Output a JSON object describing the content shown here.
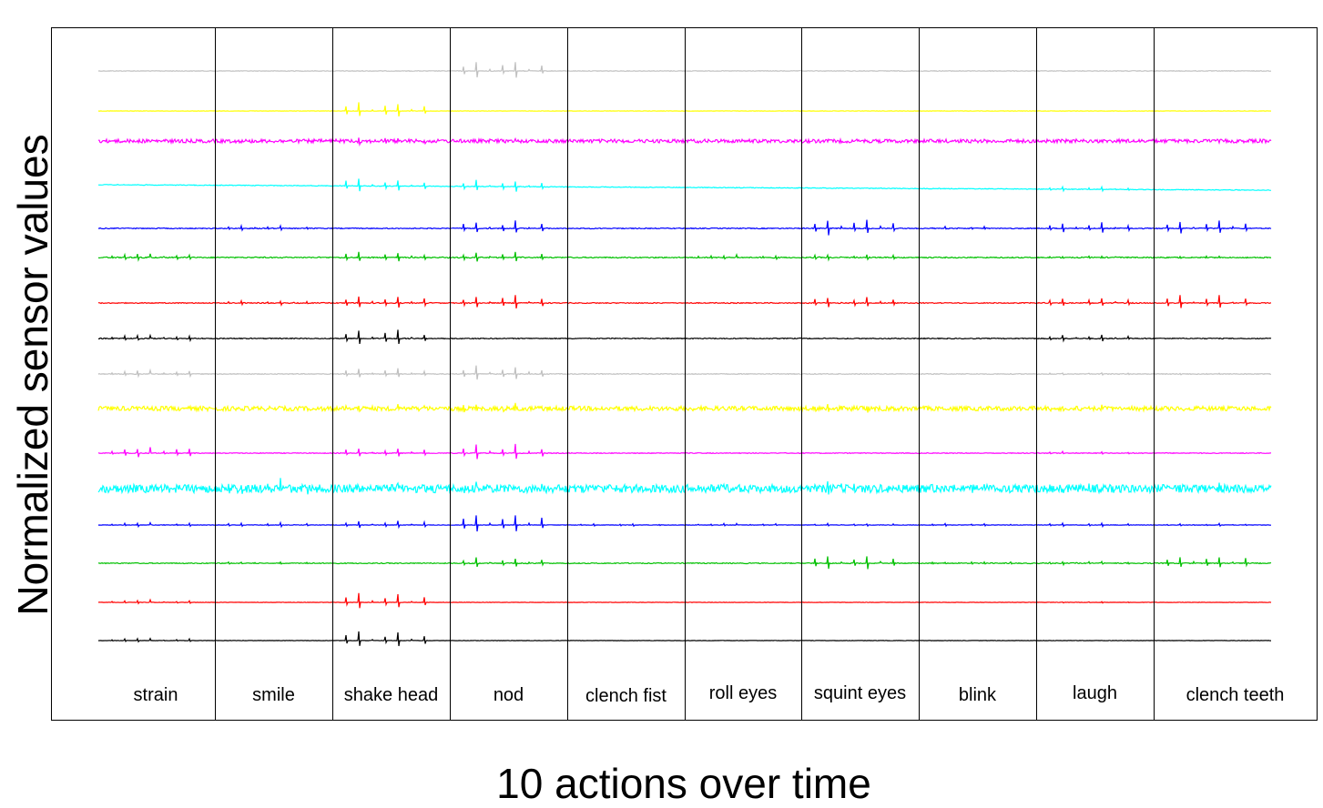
{
  "chart_data": {
    "type": "line",
    "title": "",
    "xlabel": "10 actions over time",
    "ylabel": "Normalized sensor values",
    "legend": "none",
    "grid": false,
    "segments": [
      "strain",
      "smile",
      "shake head",
      "nod",
      "clench fist",
      "roll eyes",
      "squint eyes",
      "blink",
      "laugh",
      "clench teeth"
    ],
    "series": [
      {
        "color": "#c0c0c0",
        "base": "flat",
        "noise": 0.6,
        "spikes": [
          0,
          0,
          0,
          13,
          0,
          0,
          0,
          0,
          0,
          0
        ]
      },
      {
        "color": "#ffff00",
        "base": "flat",
        "noise": 0.4,
        "spikes": [
          0,
          0,
          13,
          0,
          0,
          0,
          0,
          0,
          0,
          0
        ]
      },
      {
        "color": "#ff00ff",
        "base": "flat",
        "noise": 4,
        "spikes": [
          0,
          0,
          4,
          2,
          0,
          0,
          0,
          0,
          3,
          0
        ]
      },
      {
        "color": "#00ffff",
        "base": "slope",
        "noise": 0.8,
        "spikes": [
          0,
          0,
          11,
          10,
          0,
          0,
          0,
          0,
          3,
          0
        ]
      },
      {
        "color": "#0000ff",
        "base": "flat",
        "noise": 1.0,
        "spikes": [
          0,
          4,
          0,
          10,
          0,
          0,
          13,
          2,
          8,
          11
        ]
      },
      {
        "color": "#00c000",
        "base": "flat",
        "noise": 1.2,
        "spikes": [
          5,
          0,
          8,
          8,
          0,
          3,
          4,
          0,
          2,
          2
        ]
      },
      {
        "color": "#ff0000",
        "base": "flat",
        "noise": 1.0,
        "spikes": [
          0,
          3,
          10,
          11,
          0,
          0,
          9,
          0,
          7,
          11
        ]
      },
      {
        "color": "#000000",
        "base": "flat",
        "noise": 1.0,
        "spikes": [
          4,
          0,
          12,
          0,
          0,
          0,
          0,
          0,
          5,
          0
        ]
      },
      {
        "color": "#c0c0c0",
        "base": "flat",
        "noise": 0.8,
        "spikes": [
          5,
          0,
          8,
          12,
          0,
          0,
          0,
          0,
          2,
          1
        ]
      },
      {
        "color": "#ffff00",
        "base": "flat",
        "noise": 5,
        "spikes": [
          0,
          0,
          5,
          6,
          0,
          0,
          5,
          0,
          3,
          0
        ]
      },
      {
        "color": "#ff00ff",
        "base": "flat",
        "noise": 0.8,
        "spikes": [
          8,
          0,
          8,
          12,
          0,
          0,
          0,
          0,
          2,
          0
        ]
      },
      {
        "color": "#00ffff",
        "base": "flat",
        "noise": 9,
        "spikes": [
          0,
          10,
          6,
          5,
          2,
          2,
          8,
          2,
          4,
          3
        ]
      },
      {
        "color": "#0000ff",
        "base": "flat",
        "noise": 0.5,
        "spikes": [
          3,
          3,
          6,
          16,
          2,
          2,
          2,
          2,
          3,
          2
        ]
      },
      {
        "color": "#00c000",
        "base": "flat",
        "noise": 1.0,
        "spikes": [
          0,
          2,
          0,
          8,
          0,
          0,
          11,
          2,
          3,
          11
        ]
      },
      {
        "color": "#ff0000",
        "base": "flat",
        "noise": 0.4,
        "spikes": [
          3,
          0,
          12,
          0,
          0,
          0,
          0,
          0,
          1,
          0
        ]
      },
      {
        "color": "#000000",
        "base": "flat",
        "noise": 0.4,
        "spikes": [
          3,
          0,
          12,
          0,
          0,
          0,
          0,
          0,
          0,
          0
        ]
      }
    ]
  }
}
